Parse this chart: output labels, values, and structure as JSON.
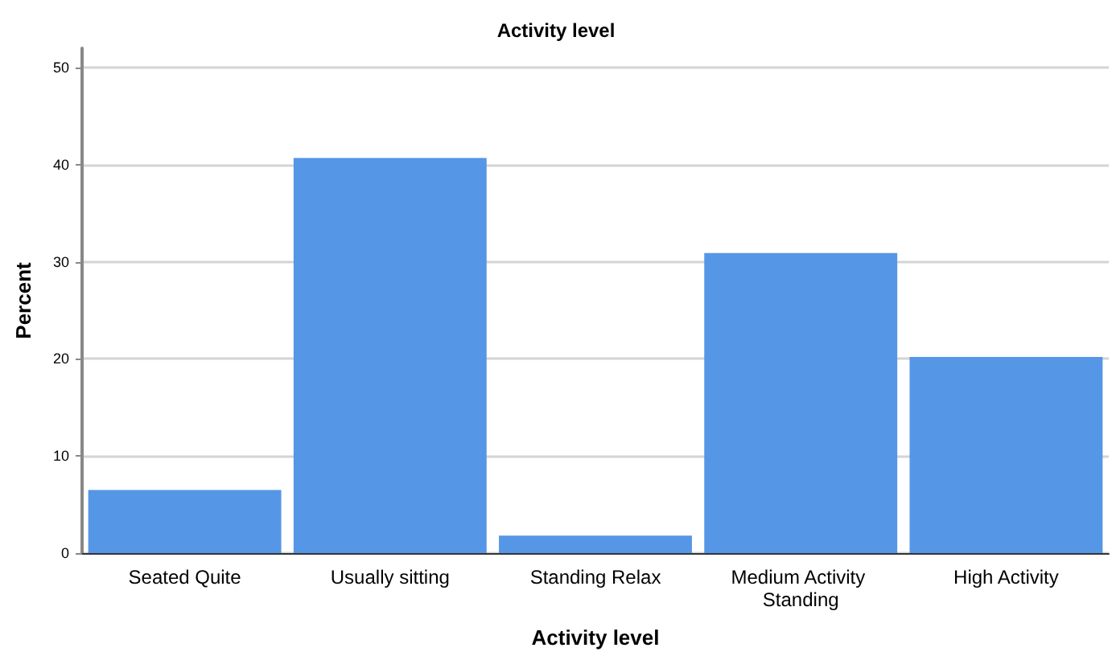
{
  "chart_data": {
    "type": "bar",
    "title": "Activity level",
    "xlabel": "Activity level",
    "ylabel": "Percent",
    "categories": [
      "Seated Quite",
      "Usually sitting",
      "Standing Relax",
      "Medium Activity Standing",
      "High Activity"
    ],
    "values": [
      6.5,
      40.7,
      1.8,
      30.9,
      20.2
    ],
    "color": "#5596e6",
    "ylim": [
      0,
      52
    ],
    "yticks": [
      0,
      10,
      20,
      30,
      40,
      50
    ],
    "grid": "y"
  }
}
